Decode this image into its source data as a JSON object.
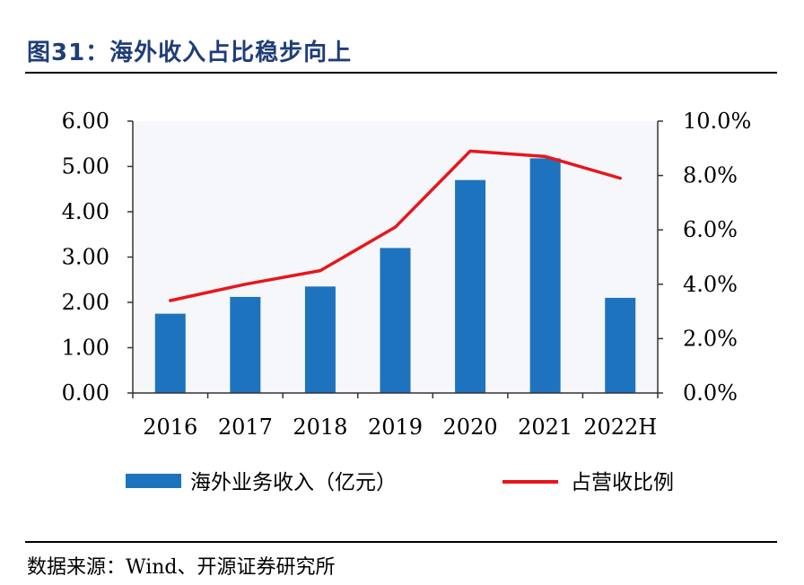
{
  "figure": {
    "title": "图31：海外收入占比稳步向上",
    "source": "数据来源：Wind、开源证券研究所"
  },
  "chart_data": {
    "type": "bar",
    "categories": [
      "2016",
      "2017",
      "2018",
      "2019",
      "2020",
      "2021",
      "2022H"
    ],
    "series": [
      {
        "name": "海外业务收入（亿元）",
        "type": "bar",
        "axis": "left",
        "color": "#1e73be",
        "values": [
          1.75,
          2.12,
          2.35,
          3.2,
          4.7,
          5.18,
          2.1
        ]
      },
      {
        "name": "占营收比例",
        "type": "line",
        "axis": "right",
        "color": "#e8161b",
        "values": [
          3.4,
          4.0,
          4.5,
          6.1,
          8.9,
          8.7,
          7.9
        ]
      }
    ],
    "left_axis": {
      "ticks": [
        "0.00",
        "1.00",
        "2.00",
        "3.00",
        "4.00",
        "5.00",
        "6.00"
      ],
      "ylim": [
        0,
        6
      ]
    },
    "right_axis": {
      "ticks": [
        "0.0%",
        "2.0%",
        "4.0%",
        "6.0%",
        "8.0%",
        "10.0%"
      ],
      "ylim": [
        0,
        10
      ]
    },
    "legend_position": "bottom",
    "grid": false
  }
}
